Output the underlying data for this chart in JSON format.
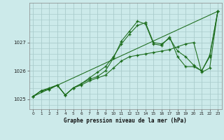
{
  "xlabel": "Graphe pression niveau de la mer (hPa)",
  "background_color": "#cceaea",
  "grid_color": "#aacccc",
  "line_color": "#1a6b1a",
  "xlim": [
    -0.5,
    23.5
  ],
  "ylim": [
    1024.65,
    1028.4
  ],
  "yticks": [
    1025,
    1026,
    1027
  ],
  "xticks": [
    0,
    1,
    2,
    3,
    4,
    5,
    6,
    7,
    8,
    9,
    10,
    11,
    12,
    13,
    14,
    15,
    16,
    17,
    18,
    19,
    20,
    21,
    22,
    23
  ],
  "line1_x": [
    0,
    1,
    2,
    3,
    4,
    5,
    6,
    7,
    8,
    9,
    10,
    11,
    12,
    13,
    14,
    15,
    16,
    17,
    18,
    19,
    20,
    21,
    22,
    23
  ],
  "line1_y": [
    1025.1,
    1025.3,
    1025.35,
    1025.5,
    1025.15,
    1025.4,
    1025.5,
    1025.65,
    1025.75,
    1025.85,
    1026.1,
    1026.35,
    1026.5,
    1026.55,
    1026.6,
    1026.65,
    1026.7,
    1026.75,
    1026.85,
    1026.95,
    1027.0,
    1025.95,
    1026.1,
    1028.1
  ],
  "line2_x": [
    0,
    1,
    2,
    3,
    4,
    5,
    6,
    7,
    8,
    9,
    10,
    11,
    12,
    13,
    14,
    15,
    16,
    17,
    18,
    19,
    20,
    21,
    22,
    23
  ],
  "line2_y": [
    1025.1,
    1025.3,
    1025.35,
    1025.5,
    1025.15,
    1025.4,
    1025.55,
    1025.75,
    1025.95,
    1026.15,
    1026.5,
    1026.95,
    1027.3,
    1027.6,
    1027.7,
    1027.0,
    1026.95,
    1027.15,
    1026.7,
    1026.5,
    1026.2,
    1026.0,
    1026.5,
    1028.1
  ],
  "line3_x": [
    0,
    1,
    2,
    3,
    4,
    5,
    6,
    7,
    8,
    9,
    10,
    11,
    12,
    13,
    14,
    15,
    16,
    17,
    18,
    19,
    20,
    21,
    22,
    23
  ],
  "line3_y": [
    1025.1,
    1025.3,
    1025.4,
    1025.5,
    1025.15,
    1025.4,
    1025.55,
    1025.7,
    1025.8,
    1026.0,
    1026.45,
    1027.05,
    1027.4,
    1027.75,
    1027.65,
    1026.95,
    1026.9,
    1027.2,
    1026.5,
    1026.15,
    1026.15,
    1026.0,
    1026.55,
    1028.1
  ],
  "line4_x": [
    0,
    23
  ],
  "line4_y": [
    1025.1,
    1028.1
  ]
}
